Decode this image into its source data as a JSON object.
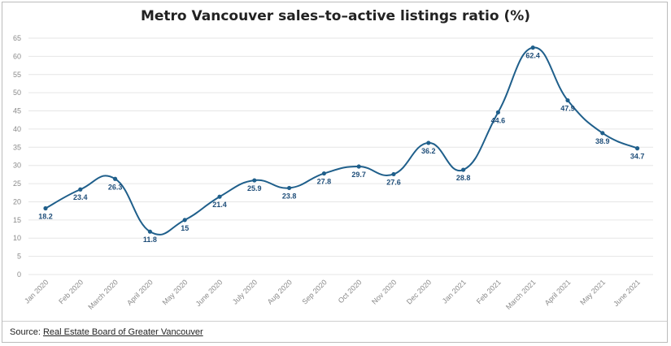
{
  "chart_data": {
    "type": "line",
    "title": "Metro Vancouver sales–to–active listings ratio (%)",
    "categories": [
      "Jan 2020",
      "Feb 2020",
      "March 2020",
      "April 2020",
      "May 2020",
      "June 2020",
      "July 2020",
      "Aug 2020",
      "Sep 2020",
      "Oct 2020",
      "Nov 2020",
      "Dec 2020",
      "Jan 2021",
      "Feb 2021",
      "March 2021",
      "April 2021",
      "May 2021",
      "June 2021"
    ],
    "series": [
      {
        "values": [
          18.2,
          23.4,
          26.3,
          11.8,
          15,
          21.4,
          25.9,
          23.8,
          27.8,
          29.7,
          27.6,
          36.2,
          28.8,
          44.6,
          62.4,
          47.9,
          38.9,
          34.7
        ]
      }
    ],
    "data_labels": [
      "18.2",
      "23.4",
      "26.3",
      "11.8",
      "15",
      "21.4",
      "25.9",
      "23.8",
      "27.8",
      "29.7",
      "27.6",
      "36.2",
      "28.8",
      "44.6",
      "62.4",
      "47.9",
      "38.9",
      "34.7"
    ],
    "ylim": [
      0,
      65
    ],
    "yticks": [
      0,
      5,
      10,
      15,
      20,
      25,
      30,
      35,
      40,
      45,
      50,
      55,
      60,
      65
    ],
    "xlabel": "",
    "ylabel": "",
    "grid": true,
    "line_color": "#1f5f8b",
    "label_color": "#1f4e79"
  },
  "footer": {
    "source_prefix": "Source: ",
    "source_link": "Real Estate Board of Greater Vancouver"
  }
}
